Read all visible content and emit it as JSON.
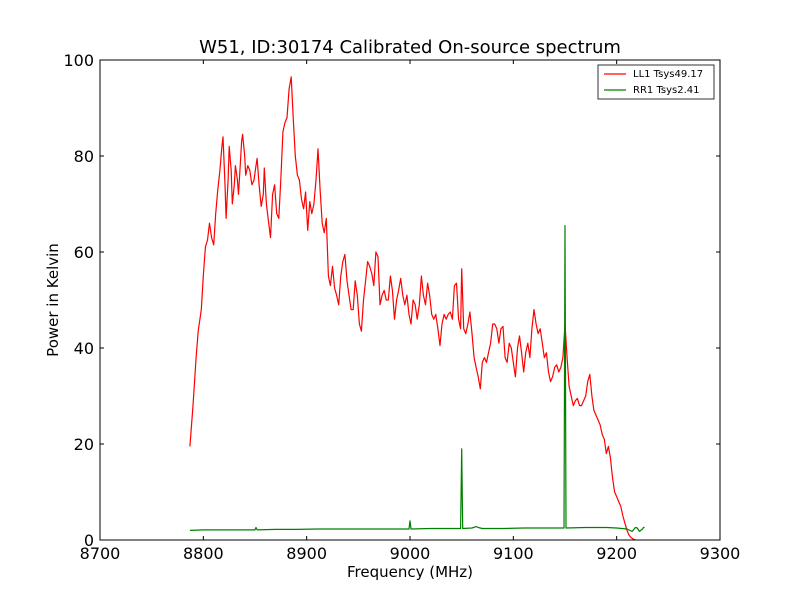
{
  "chart_data": {
    "type": "line",
    "title": "W51, ID:30174 Calibrated On-source spectrum",
    "xlabel": "Frequency (MHz)",
    "ylabel": "Power in Kelvin",
    "xlim": [
      8700,
      9300
    ],
    "ylim": [
      0,
      100
    ],
    "xticks": [
      8700,
      8800,
      8900,
      9000,
      9100,
      9200,
      9300
    ],
    "yticks": [
      0,
      20,
      40,
      60,
      80,
      100
    ],
    "grid": false,
    "legend_position": "top-right",
    "series": [
      {
        "name": "LL1 Tsys49.17",
        "color": "#ff0000",
        "points": [
          [
            8787,
            19.5
          ],
          [
            8790,
            28
          ],
          [
            8793,
            38
          ],
          [
            8795,
            43.5
          ],
          [
            8798,
            48
          ],
          [
            8800,
            55
          ],
          [
            8802,
            61
          ],
          [
            8804,
            62.5
          ],
          [
            8806,
            66
          ],
          [
            8808,
            63
          ],
          [
            8810,
            61.5
          ],
          [
            8812,
            68
          ],
          [
            8814,
            73
          ],
          [
            8816,
            77
          ],
          [
            8818,
            82
          ],
          [
            8819,
            84
          ],
          [
            8821,
            74
          ],
          [
            8822,
            67
          ],
          [
            8824,
            75
          ],
          [
            8825,
            82
          ],
          [
            8827,
            77
          ],
          [
            8828,
            70
          ],
          [
            8830,
            74
          ],
          [
            8831,
            78
          ],
          [
            8833,
            75
          ],
          [
            8834,
            72
          ],
          [
            8836,
            79
          ],
          [
            8837,
            83
          ],
          [
            8838,
            84.5
          ],
          [
            8840,
            80
          ],
          [
            8841,
            76
          ],
          [
            8843,
            78
          ],
          [
            8845,
            77
          ],
          [
            8847,
            74
          ],
          [
            8849,
            75
          ],
          [
            8851,
            78
          ],
          [
            8852,
            79.5
          ],
          [
            8854,
            74
          ],
          [
            8856,
            69.5
          ],
          [
            8858,
            72
          ],
          [
            8859,
            77.5
          ],
          [
            8861,
            70
          ],
          [
            8863,
            66.5
          ],
          [
            8865,
            63
          ],
          [
            8867,
            72
          ],
          [
            8869,
            74
          ],
          [
            8871,
            68
          ],
          [
            8873,
            67
          ],
          [
            8875,
            75
          ],
          [
            8877,
            85
          ],
          [
            8879,
            87
          ],
          [
            8881,
            88
          ],
          [
            8883,
            94
          ],
          [
            8885,
            96.5
          ],
          [
            8887,
            88
          ],
          [
            8889,
            80
          ],
          [
            8891,
            76
          ],
          [
            8893,
            75
          ],
          [
            8895,
            71
          ],
          [
            8897,
            69
          ],
          [
            8899,
            72.5
          ],
          [
            8901,
            64.5
          ],
          [
            8903,
            70.5
          ],
          [
            8905,
            68
          ],
          [
            8907,
            70
          ],
          [
            8909,
            75
          ],
          [
            8911,
            81.5
          ],
          [
            8913,
            73
          ],
          [
            8915,
            66
          ],
          [
            8917,
            64
          ],
          [
            8919,
            67
          ],
          [
            8921,
            55
          ],
          [
            8923,
            53
          ],
          [
            8925,
            57
          ],
          [
            8927,
            52.5
          ],
          [
            8929,
            51
          ],
          [
            8931,
            49
          ],
          [
            8933,
            55
          ],
          [
            8935,
            58
          ],
          [
            8937,
            59.5
          ],
          [
            8939,
            54
          ],
          [
            8941,
            51
          ],
          [
            8943,
            48
          ],
          [
            8945,
            48
          ],
          [
            8947,
            54
          ],
          [
            8949,
            51
          ],
          [
            8951,
            45
          ],
          [
            8953,
            43.5
          ],
          [
            8955,
            50
          ],
          [
            8957,
            54
          ],
          [
            8959,
            58
          ],
          [
            8961,
            57
          ],
          [
            8963,
            55.5
          ],
          [
            8965,
            53
          ],
          [
            8967,
            60
          ],
          [
            8969,
            59
          ],
          [
            8971,
            49
          ],
          [
            8973,
            51
          ],
          [
            8975,
            52
          ],
          [
            8977,
            50
          ],
          [
            8979,
            50
          ],
          [
            8981,
            55
          ],
          [
            8983,
            52
          ],
          [
            8985,
            46
          ],
          [
            8987,
            50
          ],
          [
            8989,
            52
          ],
          [
            8991,
            54.5
          ],
          [
            8993,
            51
          ],
          [
            8995,
            49
          ],
          [
            8997,
            51
          ],
          [
            8999,
            47
          ],
          [
            9001,
            45
          ],
          [
            9003,
            50
          ],
          [
            9005,
            49
          ],
          [
            9007,
            46
          ],
          [
            9009,
            49
          ],
          [
            9011,
            55
          ],
          [
            9013,
            51
          ],
          [
            9015,
            49
          ],
          [
            9017,
            53.5
          ],
          [
            9019,
            51
          ],
          [
            9021,
            47
          ],
          [
            9023,
            46
          ],
          [
            9025,
            47
          ],
          [
            9027,
            44
          ],
          [
            9029,
            40.5
          ],
          [
            9031,
            45
          ],
          [
            9033,
            47
          ],
          [
            9035,
            46
          ],
          [
            9037,
            47
          ],
          [
            9039,
            47.5
          ],
          [
            9041,
            46
          ],
          [
            9043,
            53
          ],
          [
            9045,
            53.5
          ],
          [
            9047,
            46
          ],
          [
            9049,
            44
          ],
          [
            9050,
            56.5
          ],
          [
            9052,
            44
          ],
          [
            9054,
            43
          ],
          [
            9056,
            45
          ],
          [
            9058,
            47.5
          ],
          [
            9060,
            43
          ],
          [
            9062,
            38
          ],
          [
            9064,
            36
          ],
          [
            9066,
            34
          ],
          [
            9068,
            31.5
          ],
          [
            9070,
            37
          ],
          [
            9072,
            38
          ],
          [
            9074,
            37
          ],
          [
            9076,
            39
          ],
          [
            9078,
            41
          ],
          [
            9080,
            45
          ],
          [
            9082,
            45
          ],
          [
            9084,
            44
          ],
          [
            9086,
            41
          ],
          [
            9088,
            44
          ],
          [
            9090,
            44.5
          ],
          [
            9092,
            38
          ],
          [
            9094,
            37
          ],
          [
            9096,
            41
          ],
          [
            9098,
            40
          ],
          [
            9100,
            37
          ],
          [
            9102,
            34
          ],
          [
            9104,
            40
          ],
          [
            9106,
            42.5
          ],
          [
            9108,
            39
          ],
          [
            9110,
            35
          ],
          [
            9112,
            39
          ],
          [
            9114,
            41
          ],
          [
            9116,
            38
          ],
          [
            9118,
            44
          ],
          [
            9120,
            48
          ],
          [
            9122,
            45
          ],
          [
            9124,
            43
          ],
          [
            9126,
            44
          ],
          [
            9128,
            41
          ],
          [
            9130,
            38
          ],
          [
            9132,
            39
          ],
          [
            9134,
            35
          ],
          [
            9136,
            33
          ],
          [
            9138,
            34
          ],
          [
            9140,
            36
          ],
          [
            9142,
            36.5
          ],
          [
            9144,
            35
          ],
          [
            9146,
            36
          ],
          [
            9148,
            38
          ],
          [
            9150,
            45
          ],
          [
            9152,
            38
          ],
          [
            9154,
            32
          ],
          [
            9156,
            30
          ],
          [
            9158,
            28
          ],
          [
            9160,
            29
          ],
          [
            9162,
            29.5
          ],
          [
            9164,
            28
          ],
          [
            9166,
            28
          ],
          [
            9168,
            29
          ],
          [
            9170,
            30
          ],
          [
            9172,
            33
          ],
          [
            9174,
            34.5
          ],
          [
            9176,
            30
          ],
          [
            9178,
            27
          ],
          [
            9180,
            26
          ],
          [
            9182,
            25
          ],
          [
            9184,
            24
          ],
          [
            9186,
            22
          ],
          [
            9188,
            21
          ],
          [
            9190,
            18
          ],
          [
            9192,
            19.5
          ],
          [
            9194,
            17
          ],
          [
            9196,
            13
          ],
          [
            9198,
            10
          ],
          [
            9200,
            9
          ],
          [
            9202,
            8
          ],
          [
            9204,
            7
          ],
          [
            9206,
            5
          ],
          [
            9208,
            3.5
          ],
          [
            9210,
            2
          ],
          [
            9212,
            1
          ],
          [
            9214,
            0.5
          ],
          [
            9216,
            0.2
          ],
          [
            9218,
            0
          ]
        ]
      },
      {
        "name": "RR1 Tsys2.41",
        "color": "#008000",
        "points": [
          [
            8787,
            2
          ],
          [
            8800,
            2.1
          ],
          [
            8820,
            2.1
          ],
          [
            8840,
            2.1
          ],
          [
            8850,
            2.1
          ],
          [
            8851,
            2.6
          ],
          [
            8852,
            2.1
          ],
          [
            8870,
            2.2
          ],
          [
            8890,
            2.2
          ],
          [
            8910,
            2.3
          ],
          [
            8930,
            2.3
          ],
          [
            8950,
            2.3
          ],
          [
            8970,
            2.3
          ],
          [
            8990,
            2.3
          ],
          [
            8999,
            2.3
          ],
          [
            9000,
            4
          ],
          [
            9001,
            2.3
          ],
          [
            9020,
            2.4
          ],
          [
            9040,
            2.4
          ],
          [
            9049,
            2.4
          ],
          [
            9050,
            19
          ],
          [
            9051,
            2.4
          ],
          [
            9060,
            2.5
          ],
          [
            9064,
            2.8
          ],
          [
            9066,
            2.6
          ],
          [
            9070,
            2.4
          ],
          [
            9090,
            2.4
          ],
          [
            9110,
            2.5
          ],
          [
            9130,
            2.5
          ],
          [
            9149,
            2.5
          ],
          [
            9150,
            65.5
          ],
          [
            9151,
            2.5
          ],
          [
            9170,
            2.6
          ],
          [
            9190,
            2.6
          ],
          [
            9200,
            2.5
          ],
          [
            9210,
            2.3
          ],
          [
            9215,
            1.8
          ],
          [
            9218,
            2.6
          ],
          [
            9220,
            2.5
          ],
          [
            9222,
            1.8
          ],
          [
            9225,
            2.3
          ],
          [
            9226,
            2.6
          ],
          [
            9227,
            2.6
          ]
        ]
      }
    ]
  }
}
